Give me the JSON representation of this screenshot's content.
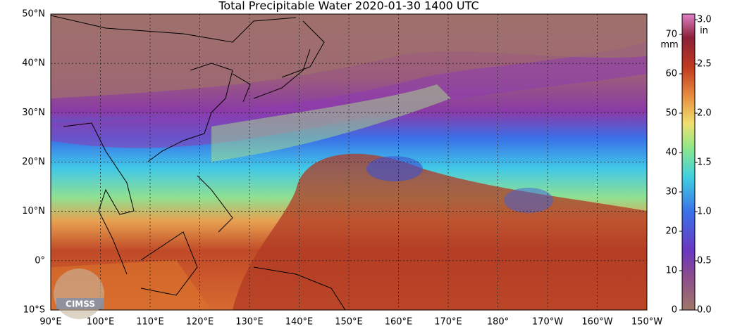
{
  "title": "Total Precipitable Water  2020-01-30 1400 UTC",
  "lat_labels": [
    "50°N",
    "40°N",
    "30°N",
    "20°N",
    "10°N",
    "0°",
    "10°S"
  ],
  "lon_labels": [
    "90°E",
    "100°E",
    "110°E",
    "120°E",
    "130°E",
    "140°E",
    "150°E",
    "160°E",
    "170°E",
    "180°",
    "170°W",
    "160°W",
    "150°W"
  ],
  "colorbar": {
    "mm_unit": "mm",
    "in_unit": "in",
    "mm_ticks": [
      "0",
      "10",
      "20",
      "30",
      "40",
      "50",
      "60",
      "70"
    ],
    "in_ticks": [
      "0.0",
      "0.5",
      "1.0",
      "1.5",
      "2.0",
      "2.5",
      "3.0"
    ]
  },
  "logo": "CIMSS"
}
